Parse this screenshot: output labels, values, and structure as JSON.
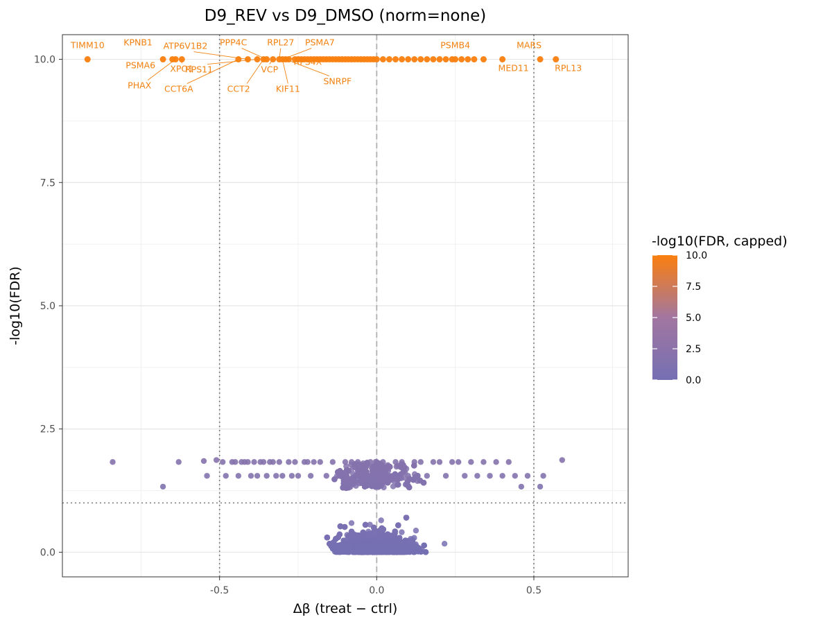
{
  "chart_data": {
    "type": "scatter",
    "title": "D9_REV vs D9_DMSO (norm=none)",
    "xlabel": "Δβ (treat − ctrl)",
    "ylabel": "-log10(FDR)",
    "xlim": [
      -1.0,
      0.8
    ],
    "ylim": [
      -0.5,
      10.5
    ],
    "x_ticks": [
      -0.5,
      0.0,
      0.5
    ],
    "x_tick_labels": [
      "-0.5",
      "0.0",
      "0.5"
    ],
    "y_ticks": [
      0.0,
      2.5,
      5.0,
      7.5,
      10.0
    ],
    "y_tick_labels": [
      "0.0",
      "2.5",
      "5.0",
      "7.5",
      "10.0"
    ],
    "vlines_dotted": [
      -0.5,
      0.5
    ],
    "vline_dashed": 0.0,
    "hline_dotted": 1.0,
    "colorbar": {
      "title": "-log10(FDR, capped)",
      "min": 0.0,
      "max": 10.0,
      "ticks": [
        0.0,
        2.5,
        5.0,
        7.5,
        10.0
      ],
      "tick_labels": [
        "0.0",
        "2.5",
        "5.0",
        "7.5",
        "10.0"
      ],
      "low_color": "#7570b3",
      "high_color": "#fa7f0f"
    },
    "capped_points_x": [
      -0.92,
      -0.68,
      -0.65,
      -0.64,
      -0.62,
      -0.44,
      -0.41,
      -0.38,
      -0.36,
      -0.35,
      -0.33,
      -0.31,
      -0.3,
      -0.29,
      -0.28,
      -0.26,
      -0.25,
      -0.24,
      -0.23,
      -0.22,
      -0.21,
      -0.2,
      -0.19,
      -0.18,
      -0.17,
      -0.16,
      -0.15,
      -0.14,
      -0.13,
      -0.12,
      -0.11,
      -0.1,
      -0.09,
      -0.08,
      -0.07,
      -0.06,
      -0.05,
      -0.04,
      -0.03,
      -0.02,
      -0.01,
      0.0,
      0.02,
      0.04,
      0.06,
      0.08,
      0.1,
      0.12,
      0.14,
      0.16,
      0.18,
      0.2,
      0.22,
      0.24,
      0.25,
      0.27,
      0.29,
      0.31,
      0.34,
      0.4,
      0.52,
      0.57
    ],
    "capped_value": 10.0,
    "labels": [
      {
        "gene": "TIMM10",
        "x": -0.92,
        "y": 10.0
      },
      {
        "gene": "KPNB1",
        "x": -0.68,
        "y": 10.0
      },
      {
        "gene": "PSMA6",
        "x": -0.65,
        "y": 10.0
      },
      {
        "gene": "PHAX",
        "x": -0.64,
        "y": 10.0
      },
      {
        "gene": "XPO1",
        "x": -0.62,
        "y": 10.0
      },
      {
        "gene": "ATP6V1B2",
        "x": -0.41,
        "y": 10.0
      },
      {
        "gene": "CCT6A",
        "x": -0.44,
        "y": 10.0
      },
      {
        "gene": "RPS11",
        "x": -0.38,
        "y": 10.0
      },
      {
        "gene": "PPP4C",
        "x": -0.35,
        "y": 10.0
      },
      {
        "gene": "CCT2",
        "x": -0.36,
        "y": 10.0
      },
      {
        "gene": "VCP",
        "x": -0.33,
        "y": 10.0
      },
      {
        "gene": "RPL27",
        "x": -0.31,
        "y": 10.0
      },
      {
        "gene": "KIF11",
        "x": -0.3,
        "y": 10.0
      },
      {
        "gene": "PSMA7",
        "x": -0.3,
        "y": 10.0
      },
      {
        "gene": "RPS4X",
        "x": -0.29,
        "y": 10.0
      },
      {
        "gene": "SNRPF",
        "x": -0.29,
        "y": 10.0
      },
      {
        "gene": "PSMB4",
        "x": 0.25,
        "y": 10.0
      },
      {
        "gene": "MED11",
        "x": 0.4,
        "y": 10.0
      },
      {
        "gene": "MARS",
        "x": 0.52,
        "y": 10.0
      },
      {
        "gene": "RPL13",
        "x": 0.57,
        "y": 10.0
      }
    ],
    "low_points_x": [
      -0.84,
      -0.68,
      -0.63,
      -0.55,
      -0.54,
      -0.51,
      -0.49,
      -0.48,
      -0.46,
      -0.45,
      -0.44,
      -0.43,
      -0.42,
      -0.41,
      -0.4,
      -0.39,
      -0.38,
      -0.37,
      -0.36,
      -0.35,
      -0.34,
      -0.33,
      -0.32,
      -0.31,
      -0.3,
      -0.28,
      -0.27,
      -0.26,
      -0.25,
      -0.23,
      -0.22,
      -0.21,
      -0.2,
      -0.18,
      -0.16,
      -0.14,
      -0.12,
      -0.1,
      -0.08,
      -0.06,
      -0.04,
      -0.02,
      0.0,
      0.02,
      0.04,
      0.06,
      0.08,
      0.1,
      0.12,
      0.14,
      0.16,
      0.18,
      0.2,
      0.22,
      0.24,
      0.26,
      0.28,
      0.3,
      0.32,
      0.34,
      0.36,
      0.38,
      0.4,
      0.42,
      0.44,
      0.46,
      0.48,
      0.52,
      0.53,
      0.59
    ],
    "low_points_y": [
      1.83,
      1.33,
      1.83,
      1.85,
      1.55,
      1.87,
      1.83,
      1.55,
      1.83,
      1.83,
      1.55,
      1.83,
      1.83,
      1.83,
      1.55,
      1.83,
      1.55,
      1.83,
      1.83,
      1.55,
      1.83,
      1.83,
      1.55,
      1.83,
      1.55,
      1.83,
      1.55,
      1.83,
      1.55,
      1.83,
      1.83,
      1.55,
      1.83,
      1.83,
      1.55,
      1.83,
      1.55,
      1.83,
      1.83,
      1.83,
      1.55,
      1.83,
      1.83,
      1.83,
      1.55,
      1.83,
      1.83,
      1.55,
      1.83,
      1.83,
      1.55,
      1.83,
      1.83,
      1.55,
      1.83,
      1.83,
      1.55,
      1.83,
      1.55,
      1.83,
      1.55,
      1.83,
      1.55,
      1.83,
      1.55,
      1.33,
      1.55,
      1.33,
      1.55,
      1.87
    ],
    "scatter_cloud": {
      "x_range": [
        -0.85,
        0.72
      ],
      "y_range": [
        0.0,
        1.9
      ],
      "approx_points": 5000
    }
  }
}
